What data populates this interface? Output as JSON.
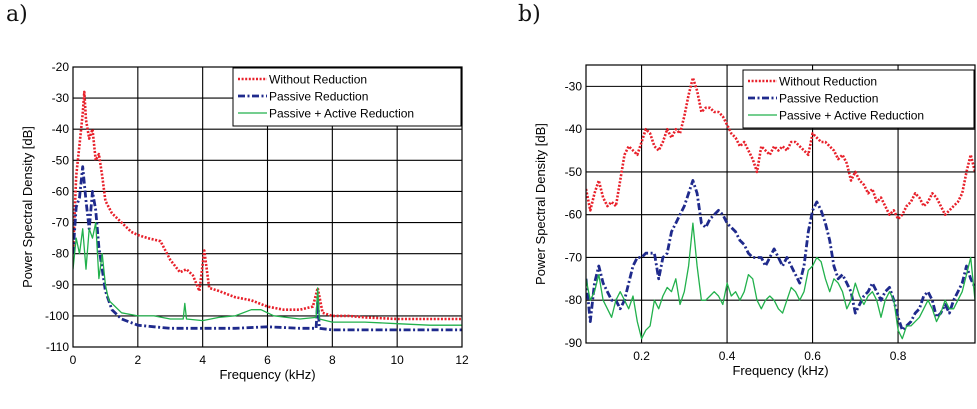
{
  "panels": [
    {
      "label": "a)"
    },
    {
      "label": "b)"
    }
  ],
  "chart_data": [
    {
      "type": "line",
      "xlabel": "Frequency  (kHz)",
      "ylabel": "Power Spectral Density [dB]",
      "xlim": [
        0,
        12
      ],
      "ylim": [
        -110,
        -20
      ],
      "xticks": [
        0,
        2,
        4,
        6,
        8,
        10,
        12
      ],
      "yticks": [
        -110,
        -100,
        -90,
        -80,
        -70,
        -60,
        -50,
        -40,
        -30,
        -20
      ],
      "grid": true,
      "legend_position": "top-right",
      "series": [
        {
          "name": "Without  Reduction",
          "color": "#e8202a",
          "style": "dotted",
          "x": [
            0,
            0.1,
            0.2,
            0.3,
            0.35,
            0.4,
            0.5,
            0.6,
            0.7,
            0.8,
            0.9,
            1.0,
            1.2,
            1.5,
            1.8,
            2.0,
            2.3,
            2.7,
            3.0,
            3.3,
            3.5,
            3.7,
            3.9,
            4.05,
            4.2,
            4.5,
            5.0,
            5.5,
            6.0,
            6.5,
            7.0,
            7.4,
            7.55,
            7.7,
            8.0,
            8.5,
            9.0,
            10.0,
            11.0,
            12.0
          ],
          "y": [
            -80,
            -55,
            -45,
            -35,
            -28,
            -37,
            -43,
            -40,
            -50,
            -48,
            -55,
            -63,
            -67,
            -70,
            -73,
            -74,
            -75,
            -76,
            -82,
            -86,
            -85,
            -87,
            -92,
            -79,
            -91,
            -92,
            -94,
            -95,
            -97,
            -98,
            -98,
            -97,
            -91,
            -99,
            -100,
            -100,
            -100.5,
            -101,
            -101,
            -101
          ]
        },
        {
          "name": "Passive  Reduction",
          "color": "#1f2a8c",
          "style": "dashdot",
          "x": [
            0,
            0.1,
            0.2,
            0.3,
            0.4,
            0.5,
            0.6,
            0.7,
            0.8,
            0.9,
            1.0,
            1.2,
            1.5,
            2.0,
            2.5,
            3.0,
            3.5,
            4.0,
            5.0,
            6.0,
            7.0,
            7.5,
            7.55,
            7.6,
            8.0,
            9.0,
            10.0,
            11.0,
            12.0
          ],
          "y": [
            -80,
            -65,
            -62,
            -52,
            -63,
            -72,
            -60,
            -66,
            -78,
            -85,
            -92,
            -98,
            -101,
            -103,
            -103.5,
            -104,
            -104,
            -104,
            -104,
            -103.5,
            -104,
            -104,
            -95,
            -104,
            -104.5,
            -104.5,
            -104.5,
            -104.5,
            -104.5
          ]
        },
        {
          "name": "Passive  + Active  Reduction",
          "color": "#22b14c",
          "style": "solid",
          "x": [
            0,
            0.1,
            0.2,
            0.3,
            0.4,
            0.5,
            0.6,
            0.7,
            0.8,
            0.9,
            1.0,
            1.1,
            1.2,
            1.5,
            2.0,
            2.5,
            3.0,
            3.4,
            3.45,
            3.5,
            4.0,
            4.5,
            5.0,
            5.5,
            5.8,
            6.2,
            7.0,
            7.5,
            7.55,
            7.6,
            8.0,
            9.0,
            10.0,
            11.0,
            12.0
          ],
          "y": [
            -85,
            -75,
            -80,
            -72,
            -85,
            -72,
            -75,
            -70,
            -88,
            -80,
            -90,
            -95,
            -96,
            -99,
            -100,
            -100,
            -101,
            -101,
            -96,
            -101,
            -101.5,
            -100.5,
            -100,
            -98,
            -98,
            -100,
            -101,
            -100.5,
            -91,
            -101,
            -102,
            -102,
            -102.5,
            -103,
            -103
          ]
        }
      ]
    },
    {
      "type": "line",
      "xlabel": "Frequency  (kHz)",
      "ylabel": "Power Spectral Density [dB]",
      "xlim": [
        0.07,
        0.98
      ],
      "ylim": [
        -90,
        -25
      ],
      "xticks": [
        0.2,
        0.4,
        0.6,
        0.8
      ],
      "yticks": [
        -90,
        -80,
        -70,
        -60,
        -50,
        -40,
        -30
      ],
      "grid": true,
      "legend_position": "top-right",
      "series": [
        {
          "name": "Without  Reduction",
          "color": "#e8202a",
          "style": "dotted",
          "x": [
            0.07,
            0.08,
            0.09,
            0.1,
            0.11,
            0.12,
            0.13,
            0.14,
            0.15,
            0.16,
            0.17,
            0.18,
            0.19,
            0.2,
            0.21,
            0.22,
            0.23,
            0.24,
            0.25,
            0.26,
            0.27,
            0.28,
            0.29,
            0.3,
            0.31,
            0.32,
            0.33,
            0.34,
            0.35,
            0.36,
            0.37,
            0.38,
            0.39,
            0.4,
            0.41,
            0.42,
            0.43,
            0.44,
            0.45,
            0.46,
            0.47,
            0.48,
            0.49,
            0.5,
            0.51,
            0.52,
            0.53,
            0.54,
            0.55,
            0.56,
            0.57,
            0.58,
            0.59,
            0.6,
            0.61,
            0.62,
            0.63,
            0.64,
            0.65,
            0.66,
            0.67,
            0.68,
            0.69,
            0.7,
            0.71,
            0.72,
            0.73,
            0.74,
            0.75,
            0.76,
            0.77,
            0.78,
            0.79,
            0.8,
            0.81,
            0.82,
            0.83,
            0.84,
            0.85,
            0.86,
            0.87,
            0.88,
            0.89,
            0.9,
            0.91,
            0.92,
            0.93,
            0.94,
            0.95,
            0.96,
            0.97,
            0.98
          ],
          "y": [
            -54,
            -59,
            -55,
            -52,
            -56,
            -58,
            -57,
            -58,
            -52,
            -46,
            -44,
            -45,
            -46,
            -43,
            -40,
            -41,
            -44,
            -45,
            -43,
            -40,
            -42,
            -40,
            -41,
            -37,
            -32,
            -28,
            -31,
            -36,
            -35,
            -35,
            -36,
            -36,
            -37,
            -39,
            -41,
            -42,
            -44,
            -43,
            -45,
            -47,
            -50,
            -44,
            -45,
            -46,
            -44,
            -45,
            -44,
            -45,
            -43,
            -43,
            -44,
            -45,
            -46,
            -41,
            -42,
            -43,
            -43,
            -44,
            -45,
            -47,
            -46,
            -48,
            -52,
            -50,
            -52,
            -53,
            -55,
            -54,
            -57,
            -56,
            -58,
            -60,
            -59,
            -61,
            -60,
            -58,
            -57,
            -55,
            -56,
            -58,
            -57,
            -55,
            -56,
            -58,
            -60,
            -59,
            -58,
            -57,
            -55,
            -50,
            -46,
            -50
          ]
        },
        {
          "name": "Passive  Reduction",
          "color": "#1f2a8c",
          "style": "dashdot",
          "x": [
            0.07,
            0.08,
            0.09,
            0.1,
            0.11,
            0.12,
            0.13,
            0.14,
            0.15,
            0.16,
            0.17,
            0.18,
            0.19,
            0.2,
            0.21,
            0.22,
            0.23,
            0.24,
            0.25,
            0.26,
            0.27,
            0.28,
            0.29,
            0.3,
            0.31,
            0.32,
            0.33,
            0.34,
            0.35,
            0.36,
            0.37,
            0.38,
            0.39,
            0.4,
            0.41,
            0.42,
            0.43,
            0.44,
            0.45,
            0.46,
            0.47,
            0.48,
            0.49,
            0.5,
            0.51,
            0.52,
            0.53,
            0.54,
            0.55,
            0.56,
            0.57,
            0.58,
            0.59,
            0.6,
            0.61,
            0.62,
            0.63,
            0.64,
            0.65,
            0.66,
            0.67,
            0.68,
            0.69,
            0.7,
            0.71,
            0.72,
            0.73,
            0.74,
            0.75,
            0.76,
            0.77,
            0.78,
            0.79,
            0.8,
            0.81,
            0.82,
            0.83,
            0.84,
            0.85,
            0.86,
            0.87,
            0.88,
            0.89,
            0.9,
            0.91,
            0.92,
            0.93,
            0.94,
            0.95,
            0.96,
            0.97,
            0.98
          ],
          "y": [
            -75,
            -85,
            -76,
            -72,
            -76,
            -78,
            -80,
            -80,
            -82,
            -80,
            -76,
            -72,
            -70,
            -70,
            -69,
            -69,
            -69,
            -75,
            -70,
            -69,
            -64,
            -62,
            -60,
            -58,
            -55,
            -52,
            -55,
            -62,
            -63,
            -61,
            -60,
            -59,
            -60,
            -62,
            -63,
            -64,
            -66,
            -67,
            -69,
            -70,
            -70,
            -70,
            -72,
            -70,
            -68,
            -70,
            -72,
            -70,
            -72,
            -74,
            -76,
            -72,
            -64,
            -59,
            -57,
            -59,
            -62,
            -66,
            -72,
            -75,
            -74,
            -76,
            -78,
            -83,
            -81,
            -79,
            -78,
            -76,
            -78,
            -80,
            -78,
            -77,
            -80,
            -84,
            -87,
            -86,
            -85,
            -83,
            -82,
            -79,
            -78,
            -80,
            -84,
            -83,
            -81,
            -83,
            -80,
            -78,
            -76,
            -72,
            -75,
            -77
          ]
        },
        {
          "name": "Passive  + Active  Reduction",
          "color": "#22b14c",
          "style": "solid",
          "x": [
            0.07,
            0.08,
            0.09,
            0.1,
            0.11,
            0.12,
            0.13,
            0.14,
            0.15,
            0.16,
            0.17,
            0.18,
            0.19,
            0.2,
            0.21,
            0.22,
            0.23,
            0.24,
            0.25,
            0.26,
            0.27,
            0.28,
            0.29,
            0.3,
            0.31,
            0.32,
            0.33,
            0.34,
            0.35,
            0.36,
            0.37,
            0.38,
            0.39,
            0.4,
            0.41,
            0.42,
            0.43,
            0.44,
            0.45,
            0.46,
            0.47,
            0.48,
            0.49,
            0.5,
            0.51,
            0.52,
            0.53,
            0.54,
            0.55,
            0.56,
            0.57,
            0.58,
            0.59,
            0.6,
            0.61,
            0.62,
            0.63,
            0.64,
            0.65,
            0.66,
            0.67,
            0.68,
            0.69,
            0.7,
            0.71,
            0.72,
            0.73,
            0.74,
            0.75,
            0.76,
            0.77,
            0.78,
            0.79,
            0.8,
            0.81,
            0.82,
            0.83,
            0.84,
            0.85,
            0.86,
            0.87,
            0.88,
            0.89,
            0.9,
            0.91,
            0.92,
            0.93,
            0.94,
            0.95,
            0.96,
            0.97,
            0.98
          ],
          "y": [
            -75,
            -80,
            -78,
            -74,
            -80,
            -82,
            -84,
            -80,
            -78,
            -80,
            -82,
            -79,
            -85,
            -89,
            -87,
            -86,
            -80,
            -82,
            -79,
            -77,
            -78,
            -75,
            -81,
            -78,
            -72,
            -62,
            -72,
            -80,
            -80,
            -79,
            -78,
            -79,
            -81,
            -76,
            -79,
            -78,
            -80,
            -78,
            -74,
            -75,
            -80,
            -82,
            -80,
            -79,
            -80,
            -82,
            -83,
            -80,
            -77,
            -78,
            -80,
            -78,
            -73,
            -72,
            -70,
            -71,
            -75,
            -78,
            -75,
            -76,
            -78,
            -82,
            -80,
            -76,
            -79,
            -81,
            -79,
            -78,
            -80,
            -84,
            -80,
            -78,
            -80,
            -87,
            -89,
            -86,
            -86,
            -85,
            -84,
            -82,
            -80,
            -82,
            -85,
            -83,
            -80,
            -82,
            -82,
            -80,
            -78,
            -74,
            -70,
            -80
          ]
        }
      ]
    }
  ]
}
